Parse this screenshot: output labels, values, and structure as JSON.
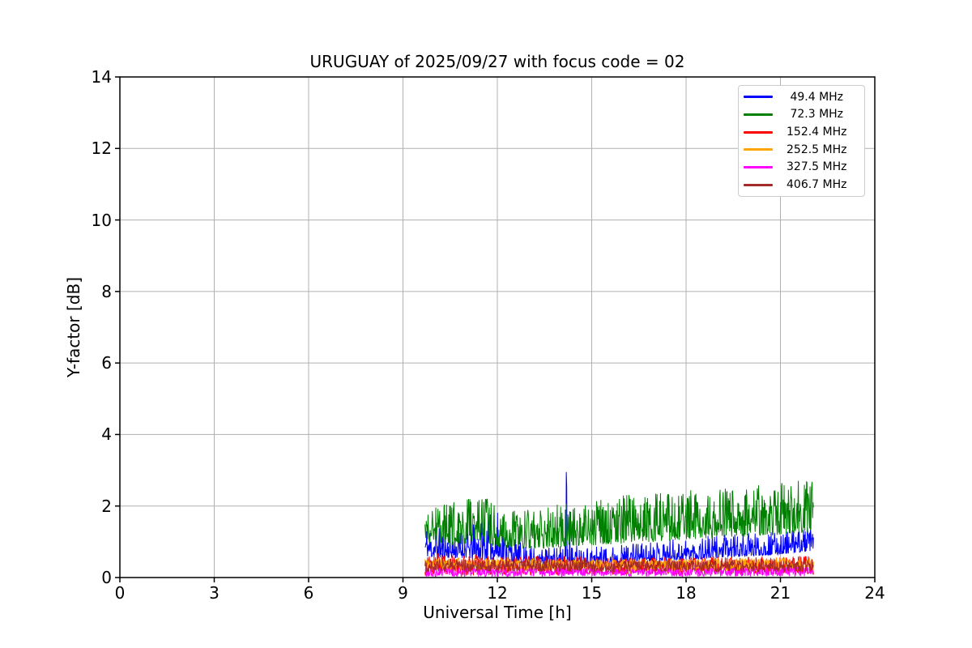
{
  "chart_data": {
    "type": "line",
    "title": "URUGUAY of 2025/09/27 with focus code = 02",
    "xlabel": "Universal Time [h]",
    "ylabel": "Y-factor [dB]",
    "xlim": [
      0,
      24
    ],
    "ylim": [
      0,
      14
    ],
    "xticks": [
      0,
      3,
      6,
      9,
      12,
      15,
      18,
      21,
      24
    ],
    "yticks": [
      0,
      2,
      4,
      6,
      8,
      10,
      12,
      14
    ],
    "grid": true,
    "grid_color": "#b0b0b0",
    "legend_position": "upper right",
    "time_range": [
      9.7,
      22.05
    ],
    "series": [
      {
        "name": " 49.4 MHz",
        "color": "#0000ff",
        "spike_shape": 2.1,
        "envelope": {
          "hours": [
            9.7,
            10.0,
            10.5,
            11.0,
            11.5,
            12.0,
            12.3,
            12.8,
            13.3,
            14.0,
            14.5,
            15.0,
            15.5,
            16.0,
            16.5,
            17.0,
            17.5,
            18.0,
            18.5,
            19.0,
            19.5,
            20.0,
            20.5,
            21.0,
            21.5,
            22.05
          ],
          "lo": [
            0.6,
            0.55,
            0.55,
            0.55,
            0.5,
            0.5,
            0.45,
            0.4,
            0.35,
            0.33,
            0.35,
            0.38,
            0.4,
            0.42,
            0.45,
            0.45,
            0.48,
            0.5,
            0.52,
            0.55,
            0.58,
            0.6,
            0.62,
            0.65,
            0.7,
            0.75
          ],
          "hi": [
            1.6,
            1.45,
            1.35,
            1.4,
            1.7,
            1.9,
            1.3,
            0.95,
            0.85,
            0.9,
            0.95,
            0.9,
            0.9,
            0.95,
            1.0,
            1.05,
            1.1,
            1.1,
            1.15,
            1.2,
            1.2,
            1.25,
            1.25,
            1.3,
            1.35,
            1.45
          ]
        },
        "spikes": [
          {
            "t": 14.17,
            "v": 1.9
          },
          {
            "t": 14.19,
            "v": 2.95
          },
          {
            "t": 14.21,
            "v": 2.55
          },
          {
            "t": 14.3,
            "v": 1.85
          }
        ]
      },
      {
        "name": " 72.3 MHz",
        "color": "#008000",
        "spike_shape": 1.6,
        "envelope": {
          "hours": [
            9.7,
            10.0,
            10.5,
            11.0,
            11.3,
            11.6,
            12.0,
            12.5,
            13.0,
            13.5,
            14.0,
            14.5,
            15.0,
            15.5,
            16.0,
            16.5,
            17.0,
            17.5,
            18.0,
            18.5,
            19.0,
            19.5,
            20.0,
            20.5,
            21.0,
            21.5,
            22.05
          ],
          "lo": [
            1.05,
            0.9,
            0.9,
            0.95,
            1.0,
            0.95,
            0.85,
            0.82,
            0.8,
            0.82,
            0.85,
            0.88,
            0.9,
            0.92,
            0.95,
            0.98,
            1.0,
            1.02,
            1.05,
            1.08,
            1.1,
            1.12,
            1.15,
            1.18,
            1.2,
            1.22,
            1.25
          ],
          "hi": [
            1.9,
            1.95,
            2.1,
            2.25,
            2.45,
            2.3,
            1.95,
            1.9,
            1.9,
            1.95,
            2.1,
            2.05,
            2.15,
            2.2,
            2.3,
            2.35,
            2.4,
            2.4,
            2.45,
            2.45,
            2.5,
            2.5,
            2.55,
            2.6,
            2.65,
            2.7,
            2.8
          ]
        },
        "spikes": []
      },
      {
        "name": "152.4 MHz",
        "color": "#ff0000",
        "spike_shape": 1.0,
        "envelope": {
          "hours": [
            9.7,
            12.0,
            15.0,
            18.0,
            21.0,
            22.05
          ],
          "lo": [
            0.05,
            0.06,
            0.08,
            0.08,
            0.08,
            0.08
          ],
          "hi": [
            0.7,
            0.62,
            0.58,
            0.58,
            0.6,
            0.62
          ]
        },
        "spikes": []
      },
      {
        "name": "252.5 MHz",
        "color": "#ffa500",
        "spike_shape": 1.0,
        "envelope": {
          "hours": [
            9.7,
            12.0,
            15.0,
            18.0,
            21.0,
            22.05
          ],
          "lo": [
            0.18,
            0.18,
            0.18,
            0.18,
            0.18,
            0.18
          ],
          "hi": [
            0.55,
            0.55,
            0.52,
            0.52,
            0.55,
            0.56
          ]
        },
        "spikes": []
      },
      {
        "name": "327.5 MHz",
        "color": "#ff00ff",
        "spike_shape": 1.0,
        "envelope": {
          "hours": [
            9.7,
            12.0,
            15.0,
            18.0,
            21.0,
            22.05
          ],
          "lo": [
            0.02,
            0.02,
            0.03,
            0.03,
            0.03,
            0.03
          ],
          "hi": [
            0.3,
            0.28,
            0.27,
            0.27,
            0.28,
            0.3
          ]
        },
        "spikes": []
      },
      {
        "name": "406.7 MHz",
        "color": "#a52a2a",
        "spike_shape": 1.0,
        "envelope": {
          "hours": [
            9.7,
            12.0,
            15.0,
            18.0,
            21.0,
            22.05
          ],
          "lo": [
            0.14,
            0.15,
            0.15,
            0.15,
            0.15,
            0.15
          ],
          "hi": [
            0.52,
            0.5,
            0.48,
            0.48,
            0.5,
            0.5
          ]
        },
        "spikes": []
      }
    ]
  }
}
